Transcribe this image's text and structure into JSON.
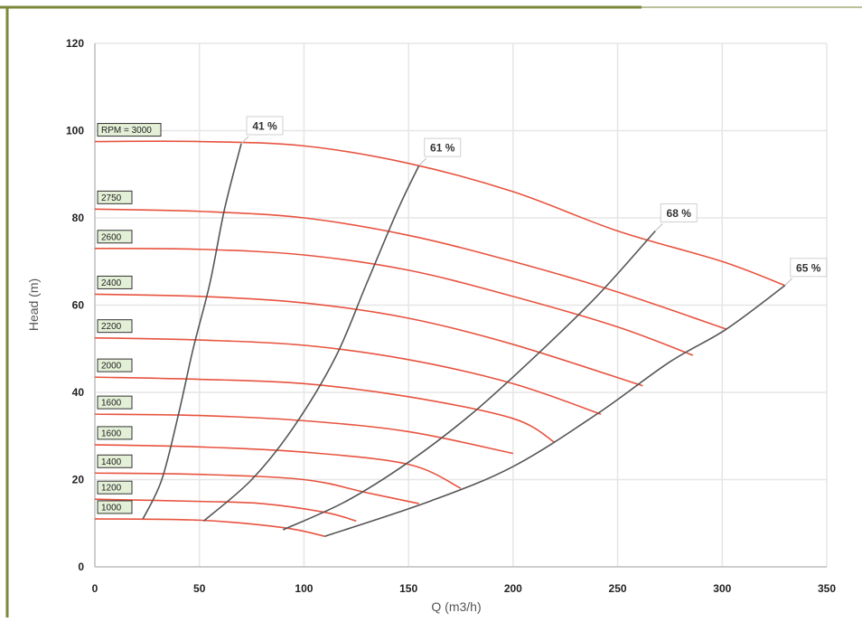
{
  "chart_data": {
    "type": "line",
    "title": "",
    "xlabel": "Q (m3/h)",
    "ylabel": "Head (m)",
    "xlim": [
      0,
      350
    ],
    "ylim": [
      0,
      120
    ],
    "x_ticks": [
      "0",
      "50",
      "100",
      "150",
      "200",
      "250",
      "300",
      "350"
    ],
    "y_ticks": [
      "0",
      "20",
      "40",
      "60",
      "80",
      "100",
      "120"
    ],
    "grid": true,
    "speed_curves": [
      {
        "label": "RPM = 3000",
        "points": [
          [
            0,
            97.5
          ],
          [
            50,
            97.5
          ],
          [
            100,
            96.5
          ],
          [
            150,
            92.5
          ],
          [
            200,
            86
          ],
          [
            250,
            77
          ],
          [
            300,
            70
          ],
          [
            330,
            64.5
          ]
        ]
      },
      {
        "label": "2750",
        "points": [
          [
            0,
            82
          ],
          [
            50,
            81.5
          ],
          [
            100,
            80
          ],
          [
            150,
            76
          ],
          [
            200,
            70
          ],
          [
            250,
            63
          ],
          [
            302,
            54.5
          ]
        ]
      },
      {
        "label": "2600",
        "points": [
          [
            0,
            73
          ],
          [
            50,
            72.8
          ],
          [
            100,
            71.5
          ],
          [
            150,
            68
          ],
          [
            200,
            62
          ],
          [
            250,
            55
          ],
          [
            286,
            48.5
          ]
        ]
      },
      {
        "label": "2400",
        "points": [
          [
            0,
            62.5
          ],
          [
            50,
            62
          ],
          [
            100,
            60.5
          ],
          [
            150,
            57
          ],
          [
            200,
            51
          ],
          [
            262,
            41.5
          ]
        ]
      },
      {
        "label": "2200",
        "points": [
          [
            0,
            52.5
          ],
          [
            50,
            52
          ],
          [
            100,
            50.8
          ],
          [
            150,
            47.5
          ],
          [
            200,
            42
          ],
          [
            242,
            35
          ]
        ]
      },
      {
        "label": "2000",
        "points": [
          [
            0,
            43.5
          ],
          [
            50,
            43
          ],
          [
            100,
            42
          ],
          [
            150,
            39
          ],
          [
            200,
            34
          ],
          [
            220,
            28.5
          ]
        ]
      },
      {
        "label": "1600",
        "points": [
          [
            0,
            35
          ],
          [
            50,
            34.7
          ],
          [
            100,
            33.5
          ],
          [
            150,
            31
          ],
          [
            200,
            26
          ]
        ]
      },
      {
        "label": "1600",
        "points": [
          [
            0,
            28
          ],
          [
            50,
            27.5
          ],
          [
            100,
            26.3
          ],
          [
            150,
            23.5
          ],
          [
            175,
            18
          ]
        ]
      },
      {
        "label": "1400",
        "points": [
          [
            0,
            21.5
          ],
          [
            50,
            21.2
          ],
          [
            100,
            20
          ],
          [
            130,
            17
          ],
          [
            155,
            14.5
          ]
        ]
      },
      {
        "label": "1200",
        "points": [
          [
            0,
            15.5
          ],
          [
            50,
            15
          ],
          [
            80,
            14.5
          ],
          [
            110,
            12.5
          ],
          [
            125,
            10.5
          ]
        ]
      },
      {
        "label": "1000",
        "points": [
          [
            0,
            11
          ],
          [
            50,
            10.7
          ],
          [
            90,
            9
          ],
          [
            110,
            7
          ]
        ]
      }
    ],
    "efficiency_curves": [
      {
        "label": "41 %",
        "points": [
          [
            23,
            11
          ],
          [
            32,
            20
          ],
          [
            40,
            35
          ],
          [
            47,
            50
          ],
          [
            55,
            65
          ],
          [
            62,
            82
          ],
          [
            70,
            97
          ]
        ]
      },
      {
        "label": "61 %",
        "points": [
          [
            52,
            10.5
          ],
          [
            75,
            20
          ],
          [
            95,
            32
          ],
          [
            115,
            48
          ],
          [
            130,
            65
          ],
          [
            145,
            82
          ],
          [
            155,
            92
          ]
        ]
      },
      {
        "label": "68 %",
        "points": [
          [
            90,
            8.5
          ],
          [
            120,
            15
          ],
          [
            150,
            24
          ],
          [
            180,
            35
          ],
          [
            210,
            48
          ],
          [
            240,
            62
          ],
          [
            268,
            77
          ]
        ]
      },
      {
        "label": "65 %",
        "points": [
          [
            110,
            7
          ],
          [
            160,
            15
          ],
          [
            200,
            23
          ],
          [
            240,
            35
          ],
          [
            275,
            47
          ],
          [
            302,
            54.5
          ],
          [
            330,
            64.5
          ]
        ]
      }
    ],
    "colors": {
      "speed": "#e8533f",
      "efficiency": "#555555",
      "grid": "#e6e6e6",
      "frame": "#7b8a3a"
    }
  }
}
